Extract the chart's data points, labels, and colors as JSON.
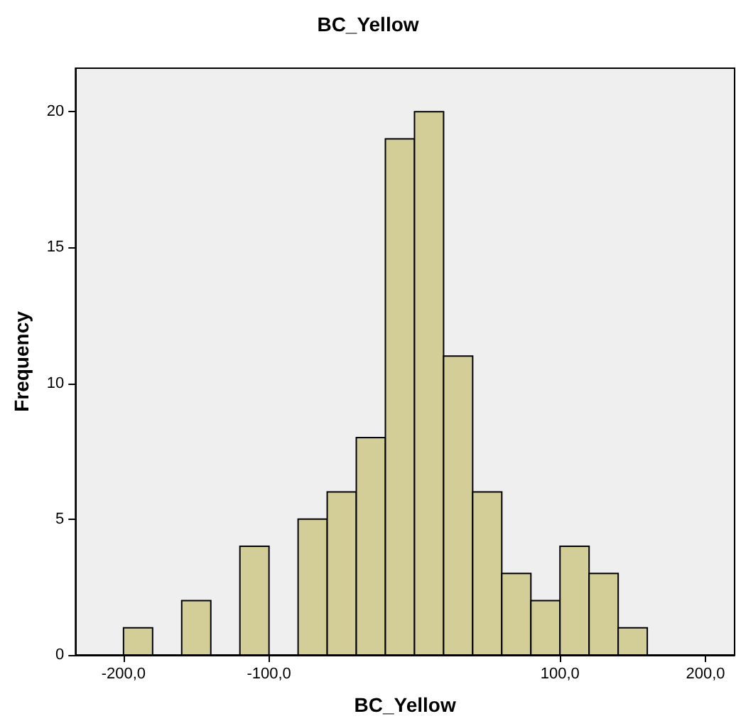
{
  "chart_data": {
    "type": "histogram",
    "title": "BC_Yellow",
    "xlabel": "BC_Yellow",
    "ylabel": "Frequency",
    "bins": [
      -200,
      -180,
      -160,
      -140,
      -120,
      -100,
      -80,
      -60,
      -40,
      -20,
      0,
      20,
      40,
      60,
      80,
      100,
      120,
      140,
      160
    ],
    "values": [
      1,
      0,
      2,
      0,
      4,
      0,
      5,
      6,
      8,
      19,
      20,
      11,
      6,
      3,
      2,
      4,
      3,
      1
    ],
    "color": "#d3ce97",
    "xlim": [
      -233,
      220
    ],
    "xticks": [
      {
        "value": -200,
        "label": "-200,0"
      },
      {
        "value": -100,
        "label": "-100,0"
      },
      {
        "value": 100,
        "label": "100,0"
      },
      {
        "value": 200,
        "label": "200,0"
      }
    ],
    "ylim": [
      0,
      21.6
    ],
    "yticks": [
      0,
      5,
      10,
      15,
      20
    ],
    "grid": false
  }
}
